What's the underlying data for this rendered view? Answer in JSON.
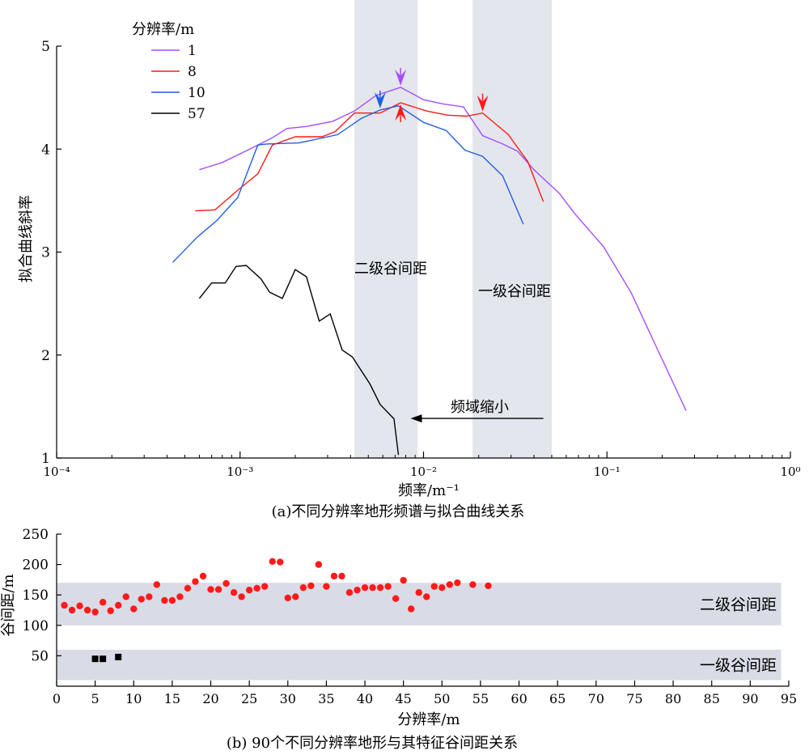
{
  "chart_data": [
    {
      "type": "line",
      "caption": "(a)不同分辨率地形频谱与拟合曲线关系",
      "xlabel": "频率/m⁻¹",
      "ylabel": "拟合曲线斜率",
      "x_scale": "log",
      "xlim": [
        0.0001,
        1
      ],
      "ylim": [
        1,
        5
      ],
      "x_tick_labels": [
        "10⁻⁴",
        "10⁻³",
        "10⁻²",
        "10⁻¹",
        "10⁰"
      ],
      "y_tick_labels": [
        "1",
        "2",
        "3",
        "4",
        "5"
      ],
      "legend_title": "分辨率/m",
      "legend_position": "top-left",
      "colors": {
        "1": "#a64dff",
        "8": "#ff1a1a",
        "10": "#1f5fe0",
        "57": "#000000",
        "band": "#e3e6ec"
      },
      "bands": [
        {
          "label": "二级谷间距",
          "x_range": [
            0.0042,
            0.0093
          ]
        },
        {
          "label": "一级谷间距",
          "x_range": [
            0.0185,
            0.05
          ]
        }
      ],
      "annotation": {
        "text": "频域缩小",
        "arrow_from": 0.045,
        "arrow_to": 0.0085,
        "y": 1.4
      },
      "series": [
        {
          "name": "1",
          "points": [
            [
              0.0006,
              3.8
            ],
            [
              0.0008,
              3.87
            ],
            [
              0.0011,
              3.99
            ],
            [
              0.0015,
              4.11
            ],
            [
              0.0018,
              4.2
            ],
            [
              0.0023,
              4.22
            ],
            [
              0.0032,
              4.27
            ],
            [
              0.0042,
              4.37
            ],
            [
              0.0055,
              4.52
            ],
            [
              0.0075,
              4.6
            ],
            [
              0.01,
              4.48
            ],
            [
              0.0127,
              4.44
            ],
            [
              0.0165,
              4.41
            ],
            [
              0.021,
              4.13
            ],
            [
              0.027,
              4.05
            ],
            [
              0.0325,
              3.98
            ],
            [
              0.04,
              3.8
            ],
            [
              0.055,
              3.57
            ],
            [
              0.067,
              3.37
            ],
            [
              0.096,
              3.05
            ],
            [
              0.135,
              2.61
            ],
            [
              0.27,
              1.46
            ]
          ]
        },
        {
          "name": "8",
          "points": [
            [
              0.00057,
              3.4
            ],
            [
              0.00073,
              3.41
            ],
            [
              0.00097,
              3.6
            ],
            [
              0.00125,
              3.76
            ],
            [
              0.0015,
              4.04
            ],
            [
              0.002,
              4.12
            ],
            [
              0.0028,
              4.12
            ],
            [
              0.0033,
              4.17
            ],
            [
              0.0042,
              4.35
            ],
            [
              0.0058,
              4.35
            ],
            [
              0.0075,
              4.45
            ],
            [
              0.0104,
              4.37
            ],
            [
              0.0135,
              4.33
            ],
            [
              0.0172,
              4.32
            ],
            [
              0.021,
              4.35
            ],
            [
              0.029,
              4.14
            ],
            [
              0.037,
              3.88
            ],
            [
              0.045,
              3.49
            ]
          ]
        },
        {
          "name": "10",
          "points": [
            [
              0.00043,
              2.9
            ],
            [
              0.00058,
              3.14
            ],
            [
              0.00075,
              3.31
            ],
            [
              0.00097,
              3.53
            ],
            [
              0.00125,
              4.04
            ],
            [
              0.0014,
              4.05
            ],
            [
              0.0021,
              4.06
            ],
            [
              0.0034,
              4.14
            ],
            [
              0.0046,
              4.3
            ],
            [
              0.0058,
              4.38
            ],
            [
              0.0073,
              4.42
            ],
            [
              0.01,
              4.26
            ],
            [
              0.0133,
              4.18
            ],
            [
              0.0168,
              3.99
            ],
            [
              0.021,
              3.93
            ],
            [
              0.027,
              3.74
            ],
            [
              0.035,
              3.27
            ]
          ]
        },
        {
          "name": "57",
          "points": [
            [
              0.0006,
              2.55
            ],
            [
              0.0007,
              2.7
            ],
            [
              0.00083,
              2.7
            ],
            [
              0.00095,
              2.86
            ],
            [
              0.00108,
              2.87
            ],
            [
              0.0013,
              2.74
            ],
            [
              0.00145,
              2.61
            ],
            [
              0.0017,
              2.55
            ],
            [
              0.002,
              2.83
            ],
            [
              0.0023,
              2.76
            ],
            [
              0.0027,
              2.33
            ],
            [
              0.0031,
              2.4
            ],
            [
              0.0036,
              2.05
            ],
            [
              0.0041,
              1.98
            ],
            [
              0.0051,
              1.72
            ],
            [
              0.0058,
              1.52
            ],
            [
              0.0069,
              1.38
            ],
            [
              0.0073,
              1.03
            ]
          ]
        }
      ],
      "markers": [
        {
          "series": "1",
          "x": 0.0075,
          "y": 4.6,
          "direction": "down"
        },
        {
          "series": "10",
          "x": 0.0058,
          "y": 4.38,
          "direction": "down"
        },
        {
          "series": "8",
          "x": 0.0075,
          "y": 4.45,
          "direction": "up"
        },
        {
          "series": "8",
          "x": 0.021,
          "y": 4.35,
          "direction": "down"
        }
      ]
    },
    {
      "type": "scatter",
      "caption": "(b) 90个不同分辨率地形与其特征谷间距关系",
      "xlabel": "分辨率/m",
      "ylabel": "谷间距/m",
      "xlim": [
        0,
        95
      ],
      "ylim": [
        0,
        250
      ],
      "x_ticks": [
        0,
        5,
        10,
        15,
        20,
        25,
        30,
        35,
        40,
        45,
        50,
        55,
        60,
        65,
        70,
        75,
        80,
        85,
        90,
        95
      ],
      "y_ticks": [
        50,
        100,
        150,
        200,
        250
      ],
      "bands": [
        {
          "label": "二级谷间距",
          "y_range": [
            100,
            170
          ]
        },
        {
          "label": "一级谷间距",
          "y_range": [
            10,
            60
          ]
        }
      ],
      "series": [
        {
          "color": "#ff1a1a",
          "marker": "circle",
          "points": [
            [
              1,
              133
            ],
            [
              2,
              125
            ],
            [
              3,
              132
            ],
            [
              4,
              125
            ],
            [
              5,
              122
            ],
            [
              6,
              138
            ],
            [
              7,
              124
            ],
            [
              8,
              133
            ],
            [
              9,
              147
            ],
            [
              10,
              127
            ],
            [
              11,
              143
            ],
            [
              12,
              147
            ],
            [
              13,
              167
            ],
            [
              14,
              141
            ],
            [
              15,
              141
            ],
            [
              16,
              147
            ],
            [
              17,
              161
            ],
            [
              18,
              172
            ],
            [
              19,
              181
            ],
            [
              20,
              159
            ],
            [
              21,
              159
            ],
            [
              22,
              169
            ],
            [
              23,
              154
            ],
            [
              24,
              147
            ],
            [
              25,
              158
            ],
            [
              26,
              161
            ],
            [
              27,
              164
            ],
            [
              28,
              205
            ],
            [
              29,
              204
            ],
            [
              30,
              145
            ],
            [
              31,
              147
            ],
            [
              32,
              162
            ],
            [
              33,
              165
            ],
            [
              34,
              200
            ],
            [
              35,
              164
            ],
            [
              36,
              181
            ],
            [
              37,
              181
            ],
            [
              38,
              154
            ],
            [
              39,
              158
            ],
            [
              40,
              162
            ],
            [
              41,
              162
            ],
            [
              42,
              162
            ],
            [
              43,
              164
            ],
            [
              44,
              144
            ],
            [
              45,
              174
            ],
            [
              46,
              127
            ],
            [
              47,
              154
            ],
            [
              48,
              147
            ],
            [
              49,
              164
            ],
            [
              50,
              162
            ],
            [
              51,
              167
            ],
            [
              52,
              170
            ],
            [
              54,
              167
            ],
            [
              56,
              165
            ]
          ]
        },
        {
          "color": "#000000",
          "marker": "square",
          "points": [
            [
              5,
              45
            ],
            [
              6,
              45
            ],
            [
              8,
              48
            ]
          ]
        }
      ]
    }
  ]
}
